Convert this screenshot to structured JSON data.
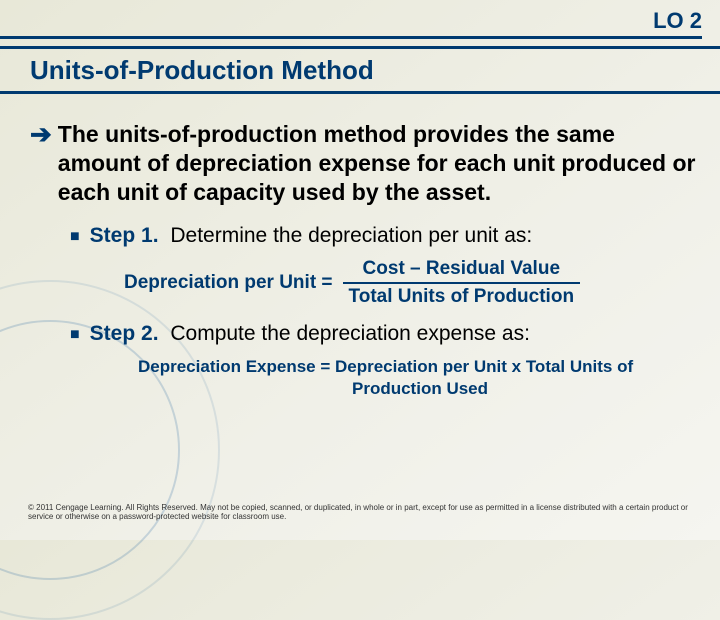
{
  "lo_label": "LO 2",
  "title": "Units-of-Production Method",
  "main_point": {
    "prefix": "The ",
    "bold_term": "units-of-production method",
    "rest": " provides the same amount of depreciation expense for each unit produced or each unit of capacity used by the asset."
  },
  "step1": {
    "label": "Step 1.",
    "desc": "  Determine the depreciation per unit as:",
    "formula_lhs": "Depreciation per Unit = ",
    "formula_num": "Cost – Residual Value",
    "formula_den": "Total Units of Production"
  },
  "step2": {
    "label": "Step 2.",
    "desc": "  Compute the depreciation expense as:",
    "formula_line1": "Depreciation Expense =  Depreciation per Unit x Total Units of",
    "formula_line2": "Production Used"
  },
  "footer": "© 2011 Cengage Learning. All Rights Reserved. May not be copied, scanned, or duplicated, in whole or in part, except for use as permitted in a license distributed with a certain product or service or otherwise on a password-protected website for classroom use."
}
